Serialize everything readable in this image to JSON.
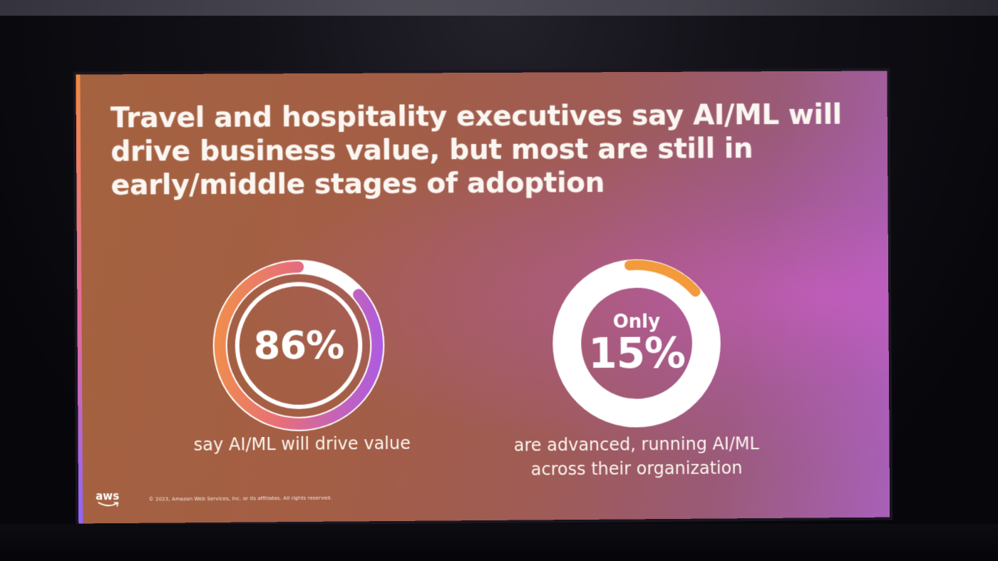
{
  "slide": {
    "title_lines": [
      "Travel and hospitality executives say AI/ML will",
      "drive business value, but most are still in",
      "early/middle stages of adoption"
    ],
    "stats": [
      {
        "value": "86%",
        "prefix": "",
        "percent": 86,
        "caption_lines": [
          "say AI/ML will drive value"
        ]
      },
      {
        "value": "15%",
        "prefix": "Only",
        "percent": 15,
        "caption_lines": [
          "are advanced, running AI/ML",
          "across their organization"
        ]
      }
    ],
    "logo_text": "aws",
    "copyright": "© 2023, Amazon Web Services, Inc. or its affiliates. All rights reserved."
  },
  "colors": {
    "gradient_start": "#f08a3c",
    "gradient_end": "#9b55ff",
    "ring_track": "#ffffff"
  }
}
